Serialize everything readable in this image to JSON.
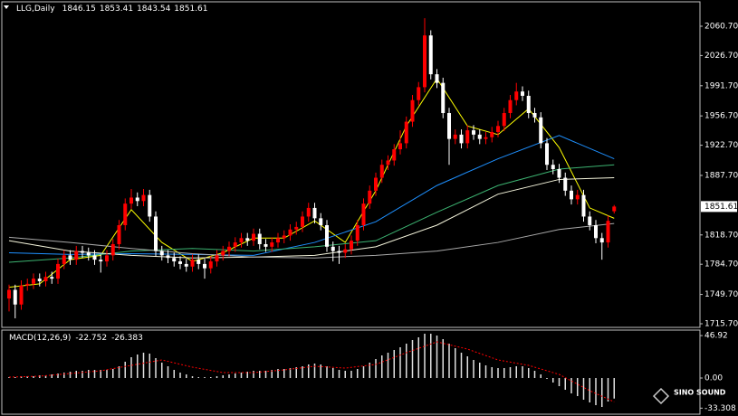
{
  "chart_data": [
    {
      "type": "candlestick",
      "symbol": "LLG,Daily",
      "open": [
        1745,
        1755,
        1738,
        1760,
        1762,
        1768,
        1765,
        1770,
        1768,
        1785,
        1795,
        1790,
        1800,
        1798,
        1795,
        1790,
        1788,
        1795,
        1808,
        1830,
        1855,
        1862,
        1858,
        1865,
        1840,
        1800,
        1795,
        1792,
        1788,
        1785,
        1782,
        1790,
        1785,
        1780,
        1788,
        1795,
        1800,
        1805,
        1810,
        1815,
        1812,
        1820,
        1808,
        1805,
        1810,
        1815,
        1818,
        1825,
        1828,
        1840,
        1850,
        1838,
        1830,
        1805,
        1800,
        1798,
        1802,
        1812,
        1830,
        1855,
        1870,
        1885,
        1900,
        1905,
        1918,
        1925,
        1950,
        1975,
        1990,
        2050,
        2005,
        1995,
        1960,
        1930,
        1935,
        1925,
        1940,
        1935,
        1930,
        1932,
        1938,
        1945,
        1960,
        1975,
        1985,
        1980,
        1960,
        1955,
        1925,
        1900,
        1895,
        1885,
        1870,
        1860,
        1865,
        1840,
        1830,
        1815,
        1810,
        1846.15
      ],
      "high": [
        1761,
        1761,
        1766,
        1768,
        1774,
        1774,
        1776,
        1776,
        1791,
        1801,
        1801,
        1806,
        1806,
        1804,
        1801,
        1796,
        1801,
        1814,
        1836,
        1861,
        1872,
        1868,
        1872,
        1871,
        1846,
        1806,
        1801,
        1798,
        1794,
        1791,
        1796,
        1796,
        1791,
        1794,
        1801,
        1806,
        1811,
        1816,
        1821,
        1821,
        1826,
        1826,
        1814,
        1816,
        1821,
        1824,
        1831,
        1834,
        1846,
        1856,
        1856,
        1844,
        1836,
        1811,
        1806,
        1808,
        1818,
        1836,
        1861,
        1876,
        1891,
        1906,
        1911,
        1924,
        1940,
        1956,
        1981,
        1996,
        2070,
        2056,
        2011,
        2001,
        1966,
        1941,
        1941,
        1946,
        1946,
        1941,
        1938,
        1944,
        1951,
        1966,
        1981,
        1995,
        1991,
        1986,
        1966,
        1961,
        1931,
        1906,
        1901,
        1891,
        1876,
        1871,
        1871,
        1846,
        1836,
        1821,
        1841,
        1853.41
      ],
      "low": [
        1730,
        1722,
        1732,
        1754,
        1756,
        1759,
        1759,
        1762,
        1762,
        1779,
        1784,
        1784,
        1792,
        1789,
        1784,
        1775,
        1782,
        1789,
        1802,
        1824,
        1849,
        1852,
        1852,
        1834,
        1794,
        1789,
        1786,
        1782,
        1779,
        1776,
        1776,
        1779,
        1768,
        1774,
        1782,
        1789,
        1794,
        1799,
        1804,
        1806,
        1806,
        1802,
        1799,
        1799,
        1804,
        1809,
        1812,
        1819,
        1822,
        1834,
        1832,
        1824,
        1799,
        1788,
        1785,
        1792,
        1796,
        1806,
        1824,
        1849,
        1864,
        1879,
        1894,
        1899,
        1912,
        1919,
        1944,
        1969,
        1984,
        1999,
        1989,
        1954,
        1900,
        1924,
        1919,
        1919,
        1929,
        1924,
        1924,
        1926,
        1932,
        1939,
        1954,
        1969,
        1974,
        1954,
        1949,
        1919,
        1894,
        1889,
        1879,
        1864,
        1854,
        1854,
        1834,
        1824,
        1809,
        1790,
        1804,
        1843.54
      ],
      "close": [
        1755,
        1738,
        1760,
        1762,
        1768,
        1765,
        1770,
        1768,
        1785,
        1795,
        1790,
        1800,
        1798,
        1795,
        1790,
        1788,
        1795,
        1808,
        1830,
        1855,
        1862,
        1858,
        1865,
        1840,
        1800,
        1795,
        1792,
        1788,
        1785,
        1782,
        1790,
        1785,
        1780,
        1788,
        1795,
        1800,
        1805,
        1810,
        1815,
        1812,
        1820,
        1808,
        1805,
        1810,
        1815,
        1818,
        1825,
        1828,
        1840,
        1850,
        1838,
        1830,
        1805,
        1800,
        1798,
        1802,
        1812,
        1830,
        1855,
        1870,
        1885,
        1900,
        1905,
        1918,
        1925,
        1950,
        1975,
        1990,
        2050,
        2005,
        1995,
        1960,
        1930,
        1935,
        1925,
        1940,
        1935,
        1930,
        1932,
        1938,
        1945,
        1960,
        1975,
        1985,
        1980,
        1960,
        1955,
        1925,
        1900,
        1895,
        1885,
        1870,
        1860,
        1865,
        1840,
        1830,
        1815,
        1810,
        1835,
        1851.61
      ],
      "up_color": "#ff0000",
      "down_color": "#ffffff",
      "ylim": [
        1711.5,
        2089
      ],
      "yticks": [
        {
          "value": 1715.7,
          "label": "1715.70"
        },
        {
          "value": 1749.7,
          "label": "1749.70"
        },
        {
          "value": 1784.7,
          "label": "1784.70"
        },
        {
          "value": 1818.7,
          "label": "1818.70"
        },
        {
          "value": 1887.7,
          "label": "1887.70"
        },
        {
          "value": 1922.7,
          "label": "1922.70"
        },
        {
          "value": 1956.7,
          "label": "1956.70"
        },
        {
          "value": 1991.7,
          "label": "1991.70"
        },
        {
          "value": 2026.7,
          "label": "2026.70"
        },
        {
          "value": 2060.7,
          "label": "2060.70"
        }
      ],
      "last_price": 1851.61,
      "moving_averages": [
        {
          "color": "#ffff00",
          "x": [
            0,
            5,
            10,
            15,
            20,
            25,
            30,
            35,
            40,
            45,
            50,
            55,
            60,
            65,
            70,
            75,
            80,
            85,
            90,
            95,
            99
          ],
          "values": [
            1758,
            1762,
            1790,
            1795,
            1848,
            1810,
            1788,
            1798,
            1815,
            1815,
            1835,
            1810,
            1870,
            1945,
            2000,
            1945,
            1935,
            1965,
            1920,
            1850,
            1838
          ]
        },
        {
          "color": "#1e90ff",
          "x": [
            0,
            10,
            20,
            30,
            40,
            50,
            60,
            70,
            80,
            90,
            99
          ],
          "values": [
            1798,
            1796,
            1797,
            1796,
            1795,
            1810,
            1834,
            1876,
            1907,
            1934,
            1907
          ]
        },
        {
          "color": "#3cb371",
          "x": [
            0,
            10,
            20,
            30,
            40,
            50,
            60,
            70,
            80,
            90,
            99
          ],
          "values": [
            1787,
            1792,
            1800,
            1803,
            1800,
            1805,
            1812,
            1845,
            1876,
            1895,
            1900
          ]
        },
        {
          "color": "#f5f5dc",
          "x": [
            0,
            10,
            20,
            30,
            40,
            50,
            60,
            70,
            80,
            90,
            99
          ],
          "values": [
            1812,
            1800,
            1795,
            1792,
            1793,
            1795,
            1805,
            1830,
            1866,
            1883,
            1885
          ]
        },
        {
          "color": "#a9a9a9",
          "x": [
            0,
            10,
            20,
            30,
            40,
            50,
            60,
            70,
            80,
            90,
            99
          ],
          "values": [
            1816,
            1810,
            1803,
            1797,
            1793,
            1792,
            1795,
            1800,
            1810,
            1825,
            1832
          ]
        }
      ]
    },
    {
      "type": "macd",
      "title": "MACD(12,26,9)",
      "histogram": [
        1,
        1,
        2,
        2,
        2,
        3,
        3,
        4,
        5,
        6,
        7,
        8,
        8,
        9,
        9,
        9,
        9,
        10,
        13,
        18,
        23,
        26,
        28,
        27,
        22,
        17,
        13,
        9,
        6,
        4,
        2,
        1,
        1,
        1,
        2,
        3,
        4,
        5,
        6,
        7,
        8,
        8,
        8,
        9,
        10,
        10,
        11,
        12,
        13,
        15,
        16,
        15,
        13,
        11,
        9,
        8,
        8,
        10,
        13,
        17,
        21,
        25,
        28,
        31,
        34,
        38,
        42,
        45,
        49,
        49,
        47,
        43,
        38,
        33,
        28,
        24,
        20,
        17,
        14,
        12,
        11,
        11,
        12,
        13,
        13,
        11,
        8,
        4,
        -1,
        -5,
        -9,
        -13,
        -17,
        -20,
        -24,
        -27,
        -30,
        -32,
        -26,
        -22.752
      ],
      "signal": {
        "color": "#ff0000",
        "x": [
          0,
          5,
          10,
          15,
          20,
          25,
          30,
          35,
          40,
          45,
          50,
          55,
          60,
          65,
          70,
          75,
          80,
          85,
          90,
          95,
          99
        ],
        "values": [
          1,
          2,
          5,
          8,
          14,
          20,
          12,
          6,
          6,
          9,
          13,
          11,
          15,
          28,
          40,
          32,
          20,
          14,
          4,
          -14,
          -26.383
        ]
      },
      "ylim": [
        -40,
        52
      ],
      "yticks": [
        -33.308,
        {
          "value": 0,
          "label": "0.00"
        },
        46.92
      ]
    },
    {
      "watermark": "SINO SOUND"
    }
  ]
}
